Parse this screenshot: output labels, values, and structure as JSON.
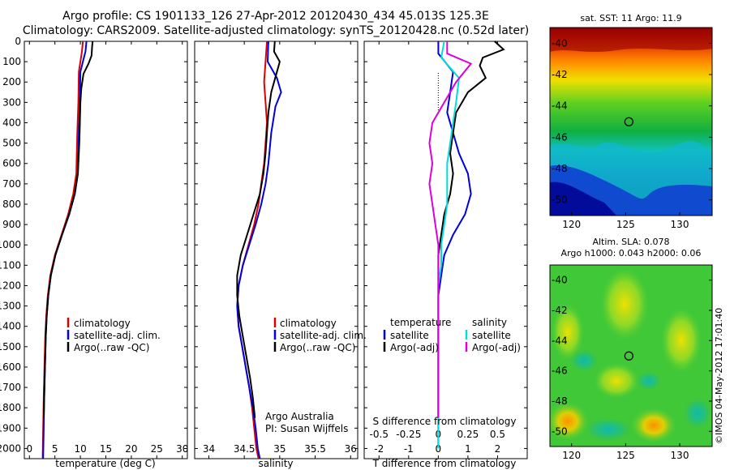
{
  "header": {
    "line1": "Argo profile: CS 1901133_126 27-Apr-2012 20120430_434 45.013S 125.3E",
    "line2": "Climatology: CARS2009. Satellite-adjusted climatology: synTS_20120428.nc (0.52d later)"
  },
  "colors": {
    "climatology": "#dd0000",
    "satellite": "#0000dd",
    "argo": "#000000",
    "sal_satellite": "#00dddd",
    "sal_argo": "#dd00dd"
  },
  "chart_data": [
    {
      "type": "line",
      "xlabel": "temperature (deg C)",
      "ylabel": "",
      "xlim": [
        -1,
        31
      ],
      "ylim": [
        2050,
        0
      ],
      "xticks": [
        0,
        5,
        10,
        15,
        20,
        25,
        30
      ],
      "yticks": [
        0,
        100,
        200,
        300,
        400,
        500,
        600,
        700,
        800,
        900,
        1000,
        1100,
        1200,
        1300,
        1400,
        1500,
        1600,
        1700,
        1800,
        1900,
        2000
      ],
      "legend": [
        "climatology",
        "satellite-adj. clim.",
        "Argo(..raw -QC)"
      ],
      "legend_position": "bottom-right",
      "series": [
        {
          "name": "climatology",
          "color_key": "climatology",
          "x": [
            10.5,
            10.3,
            10.0,
            9.7,
            9.6,
            9.4,
            9.3,
            9.2,
            8.6,
            7.6,
            6.3,
            5.0,
            4.1,
            3.6,
            3.3,
            3.1,
            3.0,
            2.9,
            2.8,
            2.7,
            2.6
          ],
          "y": [
            0,
            50,
            100,
            150,
            300,
            450,
            550,
            650,
            750,
            850,
            950,
            1050,
            1150,
            1250,
            1350,
            1450,
            1550,
            1650,
            1750,
            1900,
            2050
          ]
        },
        {
          "name": "satellite-adj. clim.",
          "color_key": "satellite",
          "x": [
            11.2,
            11.0,
            10.5,
            10.0,
            9.9,
            9.7,
            9.6,
            9.5,
            8.9,
            7.8,
            6.4,
            5.1,
            4.2,
            3.7,
            3.4,
            3.2,
            3.1,
            3.0,
            2.9,
            2.8,
            2.7
          ],
          "y": [
            0,
            50,
            100,
            150,
            300,
            450,
            550,
            650,
            750,
            850,
            950,
            1050,
            1150,
            1250,
            1350,
            1450,
            1550,
            1650,
            1750,
            1900,
            2050
          ]
        },
        {
          "name": "Argo(..raw -QC)",
          "color_key": "argo",
          "x": [
            12.4,
            12.3,
            12.2,
            11.6,
            10.6,
            10.2,
            10.0,
            9.9,
            9.8,
            9.7,
            9.5,
            8.9,
            7.8,
            6.4,
            5.1,
            4.2,
            3.7,
            3.4,
            3.2,
            3.1,
            3.0,
            2.9,
            2.8
          ],
          "y": [
            0,
            30,
            70,
            110,
            160,
            230,
            300,
            400,
            500,
            550,
            650,
            750,
            850,
            950,
            1050,
            1150,
            1250,
            1350,
            1450,
            1550,
            1650,
            1750,
            1850
          ]
        }
      ]
    },
    {
      "type": "line",
      "xlabel": "salinity",
      "ylabel": "",
      "xlim": [
        33.8,
        36.1
      ],
      "ylim": [
        2050,
        0
      ],
      "xticks": [
        34,
        34.5,
        35,
        35.5,
        36
      ],
      "legend": [
        "climatology",
        "satellite-adj. clim.",
        "Argo(..raw -QC)"
      ],
      "legend_position": "bottom-right",
      "annotation": [
        "Argo Australia",
        "PI: Susan Wijffels"
      ],
      "series": [
        {
          "name": "climatology",
          "color_key": "climatology",
          "x": [
            34.82,
            34.8,
            34.78,
            34.8,
            34.82,
            34.8,
            34.78,
            34.74,
            34.7,
            34.64,
            34.56,
            34.48,
            34.42,
            34.4,
            34.42,
            34.47,
            34.52,
            34.57,
            34.61,
            34.64,
            34.67,
            34.7
          ],
          "y": [
            0,
            100,
            200,
            300,
            400,
            500,
            600,
            700,
            800,
            900,
            1000,
            1100,
            1200,
            1300,
            1400,
            1500,
            1600,
            1700,
            1800,
            1900,
            2000,
            2050
          ]
        },
        {
          "name": "satellite-adj. clim.",
          "color_key": "satellite",
          "x": [
            34.84,
            34.83,
            34.96,
            35.02,
            34.94,
            34.88,
            34.84,
            34.8,
            34.74,
            34.66,
            34.57,
            34.48,
            34.42,
            34.4,
            34.42,
            34.47,
            34.52,
            34.57,
            34.62,
            34.66,
            34.69,
            34.72
          ],
          "y": [
            0,
            100,
            180,
            250,
            320,
            450,
            600,
            700,
            800,
            900,
            1000,
            1100,
            1200,
            1300,
            1400,
            1500,
            1600,
            1700,
            1800,
            1900,
            2000,
            2050
          ]
        },
        {
          "name": "Argo(..raw -QC)",
          "color_key": "argo",
          "x": [
            34.93,
            34.92,
            35.0,
            34.96,
            34.88,
            34.84,
            34.82,
            34.8,
            34.77,
            34.72,
            34.63,
            34.54,
            34.45,
            34.4,
            34.4,
            34.43,
            34.48,
            34.53,
            34.58,
            34.62,
            34.65
          ],
          "y": [
            0,
            50,
            100,
            150,
            250,
            350,
            450,
            550,
            650,
            750,
            850,
            950,
            1050,
            1150,
            1250,
            1350,
            1450,
            1550,
            1650,
            1750,
            1850
          ]
        }
      ]
    },
    {
      "type": "line",
      "xlabel": "T difference from climatology",
      "xlabel_top": "S difference from climatology",
      "ylabel": "",
      "xlim": [
        -2.5,
        3.0
      ],
      "ylim": [
        2050,
        0
      ],
      "xticks": [
        -2,
        -1,
        0,
        1,
        2
      ],
      "xticks_top": [
        -0.5,
        -0.25,
        0,
        0.25,
        0.5
      ],
      "legend_title_left": "temperature",
      "legend_title_right": "salinity",
      "legend": [
        "satellite",
        "Argo(-adj)",
        "satellite",
        "Argo(-adj)"
      ],
      "legend_position": "bottom",
      "series": [
        {
          "name": "satellite",
          "group": "temperature",
          "color_key": "satellite",
          "x": [
            0.0,
            0.0,
            0.5,
            0.4,
            0.3,
            0.5,
            0.7,
            1.0,
            1.1,
            0.9,
            0.5,
            0.2,
            0.1,
            0.0,
            0.0,
            0.0,
            0.0,
            0.0,
            0.0,
            0.0,
            0.0
          ],
          "y": [
            0,
            60,
            150,
            250,
            350,
            450,
            550,
            650,
            750,
            850,
            950,
            1050,
            1150,
            1250,
            1350,
            1450,
            1550,
            1650,
            1750,
            1850,
            2000
          ]
        },
        {
          "name": "Argo(-adj)",
          "group": "temperature",
          "color_key": "argo",
          "x": [
            1.9,
            2.2,
            1.5,
            1.4,
            1.6,
            1.0,
            0.6,
            0.5,
            0.4,
            0.5,
            0.4,
            0.2,
            0.1,
            0.0,
            0.0,
            0.0,
            0.0,
            0.0,
            0.0,
            0.0,
            0.0,
            0.0
          ],
          "y": [
            0,
            40,
            80,
            120,
            180,
            250,
            350,
            450,
            550,
            650,
            750,
            850,
            950,
            1050,
            1150,
            1250,
            1350,
            1450,
            1550,
            1650,
            1750,
            1850
          ]
        },
        {
          "name": "satellite",
          "group": "salinity",
          "color_key": "sal_satellite",
          "x": [
            0.2,
            0.1,
            0.7,
            0.6,
            0.5,
            0.4,
            0.3,
            0.3,
            0.3,
            0.2,
            0.1,
            0.1,
            0.0,
            0.0,
            0.0,
            0.0,
            0.0,
            0.0,
            0.0,
            0.0
          ],
          "y": [
            0,
            80,
            180,
            300,
            400,
            500,
            600,
            700,
            800,
            900,
            1000,
            1100,
            1200,
            1300,
            1400,
            1500,
            1600,
            1700,
            1800,
            2000
          ]
        },
        {
          "name": "Argo(-adj)",
          "group": "salinity",
          "color_key": "sal_argo",
          "x": [
            0.3,
            0.3,
            1.1,
            0.6,
            -0.2,
            -0.3,
            -0.2,
            -0.3,
            -0.2,
            -0.1,
            0.0,
            0.0,
            0.0,
            0.0,
            0.0,
            0.0,
            0.0,
            0.0
          ],
          "y": [
            0,
            60,
            110,
            200,
            400,
            500,
            600,
            700,
            800,
            900,
            1000,
            1100,
            1200,
            1300,
            1400,
            1500,
            1600,
            1850
          ]
        }
      ]
    },
    {
      "type": "heatmap",
      "title": "sat. SST: 11  Argo: 11.9",
      "xlim": [
        118,
        133
      ],
      "ylim": [
        -51,
        -39
      ],
      "xticks": [
        120,
        125,
        130
      ],
      "yticks": [
        -40,
        -42,
        -44,
        -46,
        -48,
        -50
      ],
      "marker": {
        "lon": 125.3,
        "lat": -45.013
      }
    },
    {
      "type": "heatmap",
      "title_line1": "Altim. SLA: 0.078",
      "title_line2": "Argo h1000: 0.043 h2000: 0.06",
      "xlim": [
        118,
        133
      ],
      "ylim": [
        -51,
        -39
      ],
      "xticks": [
        120,
        125,
        130
      ],
      "yticks": [
        -40,
        -42,
        -44,
        -46,
        -48,
        -50
      ],
      "marker": {
        "lon": 125.3,
        "lat": -45.013
      }
    }
  ],
  "footer": {
    "stamp": "©IMOS 04-May-2012 17:01:40"
  }
}
